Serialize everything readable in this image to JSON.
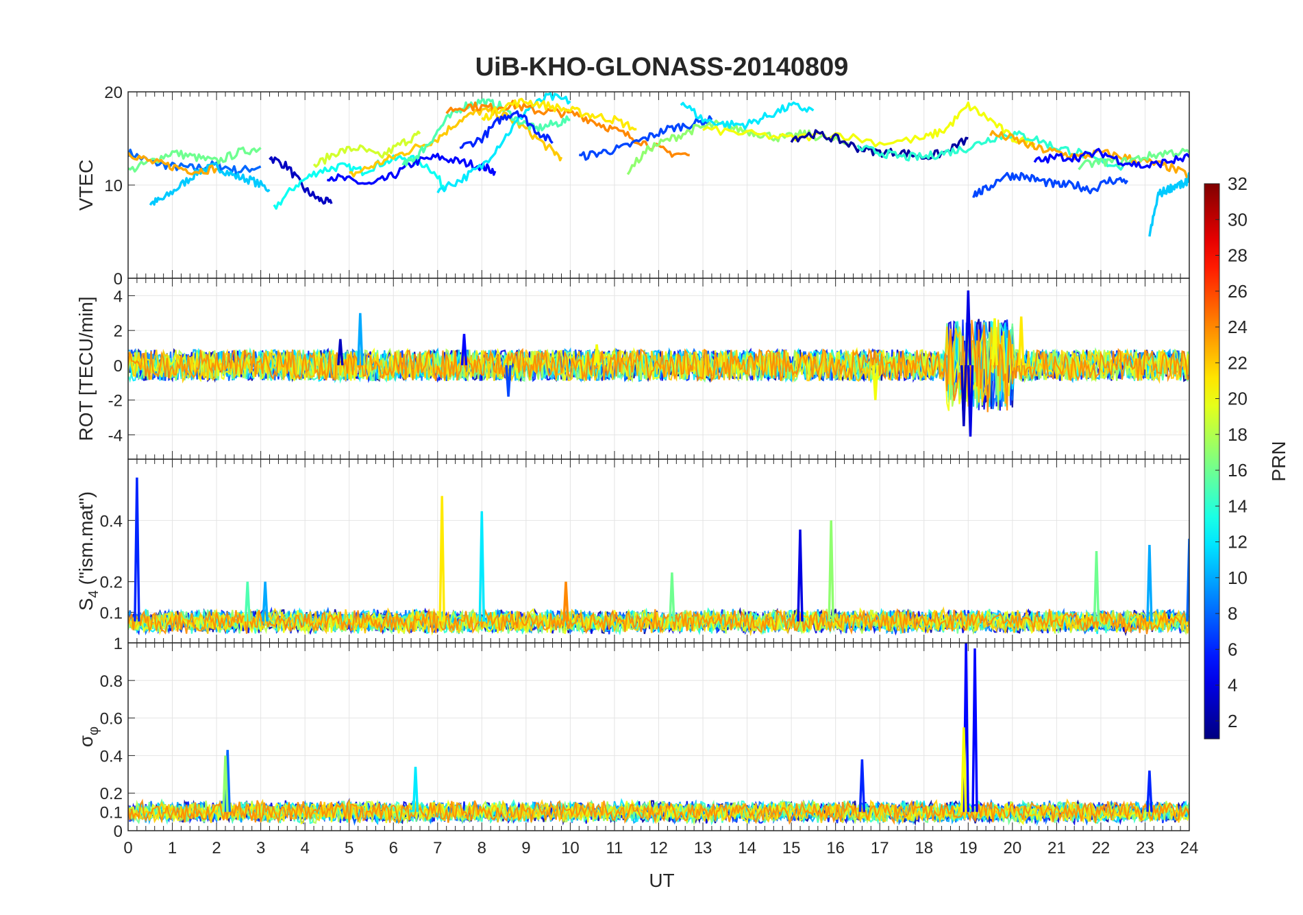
{
  "chart_data": {
    "type": "line",
    "title": "UiB-KHO-GLONASS-20140809",
    "xlabel": "UT",
    "xlim": [
      0,
      24
    ],
    "x_ticks": [
      "0",
      "1",
      "2",
      "3",
      "4",
      "5",
      "6",
      "7",
      "8",
      "9",
      "10",
      "11",
      "12",
      "13",
      "14",
      "15",
      "16",
      "17",
      "18",
      "19",
      "20",
      "21",
      "22",
      "23",
      "24"
    ],
    "grid": true,
    "panels": [
      {
        "ylabel": "VTEC",
        "ylim": [
          0,
          20
        ],
        "y_ticks": [
          "0",
          "10",
          "20"
        ],
        "tracks": [
          {
            "prn": 8,
            "x": [
              0,
              0.5,
              1,
              1.5,
              2,
              2.5,
              3
            ],
            "y": [
              13.5,
              12.5,
              12,
              11.8,
              12.2,
              11.5,
              12
            ]
          },
          {
            "prn": 11,
            "x": [
              0.5,
              0.8,
              1.2,
              1.6,
              2,
              2.4,
              2.8,
              3.2
            ],
            "y": [
              8,
              8.5,
              10,
              11.5,
              12,
              11,
              10.5,
              9.5
            ]
          },
          {
            "prn": 3,
            "x": [
              3.2,
              3.6,
              4,
              4.3,
              4.6
            ],
            "y": [
              13,
              12,
              9.5,
              8.5,
              8
            ]
          },
          {
            "prn": 13,
            "x": [
              3.3,
              3.8,
              4.3,
              4.8,
              5.3,
              5.8,
              6.3,
              6.8,
              7.2
            ],
            "y": [
              7.5,
              10,
              11.5,
              12,
              11.5,
              12.5,
              13,
              12,
              9.5
            ]
          },
          {
            "prn": 5,
            "x": [
              4.5,
              5,
              5.5,
              6,
              6.5,
              7,
              7.5,
              8,
              8.3
            ],
            "y": [
              11,
              10.5,
              10,
              11,
              12.5,
              13,
              12.5,
              12,
              11.5
            ]
          },
          {
            "prn": 16,
            "x": [
              0,
              0.5,
              1,
              1.5,
              2,
              2.5,
              3
            ],
            "y": [
              11.5,
              12.5,
              13.5,
              13,
              12.5,
              13.5,
              14
            ]
          },
          {
            "prn": 23,
            "x": [
              0,
              0.5,
              1,
              1.5,
              2
            ],
            "y": [
              13.5,
              12.5,
              12,
              11.5,
              11.8
            ]
          },
          {
            "prn": 19,
            "x": [
              4.2,
              4.7,
              5.2,
              5.7,
              6.2,
              6.6
            ],
            "y": [
              12,
              13.5,
              14,
              13,
              14.5,
              15.5
            ]
          },
          {
            "prn": 22,
            "x": [
              5,
              5.5,
              6,
              6.5,
              7,
              7.5,
              8,
              8.5,
              9,
              9.5,
              9.8
            ],
            "y": [
              11,
              12,
              13,
              14,
              15,
              17,
              18,
              17.5,
              16,
              14,
              13
            ]
          },
          {
            "prn": 15,
            "x": [
              6.2,
              6.5,
              6.8,
              7.2,
              7.6,
              8,
              8.4,
              8.8,
              9.2,
              9.6,
              10
            ],
            "y": [
              12,
              13,
              14.5,
              17,
              18.5,
              19,
              18.5,
              17,
              16,
              16.5,
              17
            ]
          },
          {
            "prn": 12,
            "x": [
              7,
              7.5,
              8,
              8.5,
              9,
              9.5,
              10
            ],
            "y": [
              9.5,
              10.5,
              12,
              15,
              18,
              19.5,
              19
            ]
          },
          {
            "prn": 6,
            "x": [
              7.5,
              8,
              8.4,
              8.8,
              9.2,
              9.6
            ],
            "y": [
              14,
              15,
              17,
              18,
              16,
              14.5
            ]
          },
          {
            "prn": 24,
            "x": [
              7.2,
              7.7,
              8.2,
              8.7,
              9.2,
              9.7,
              10.2,
              10.7,
              11.2,
              11.7,
              12.2,
              12.7
            ],
            "y": [
              18,
              18.5,
              18.3,
              18.6,
              18,
              17.8,
              17.5,
              16.5,
              15.5,
              14.5,
              13.5,
              13.2
            ]
          },
          {
            "prn": 21,
            "x": [
              8,
              8.5,
              9,
              9.5,
              10,
              10.5,
              11,
              11.5
            ],
            "y": [
              17,
              18.5,
              19,
              18.5,
              18,
              17.5,
              17,
              16
            ]
          },
          {
            "prn": 7,
            "x": [
              10.2,
              10.7,
              11.2,
              11.7,
              12.2,
              12.7,
              13.2
            ],
            "y": [
              13,
              13.5,
              14,
              15,
              16,
              16.5,
              17
            ]
          },
          {
            "prn": 17,
            "x": [
              11.3,
              11.8,
              12.3,
              12.8,
              13.3,
              13.8,
              14.3,
              14.8,
              15.3,
              15.8,
              16.3
            ],
            "y": [
              11.5,
              14,
              15,
              16,
              16.5,
              16,
              15.5,
              15,
              15.5,
              15,
              14.5
            ]
          },
          {
            "prn": 12,
            "x": [
              12.5,
              13,
              13.5,
              14,
              14.5,
              15,
              15.5
            ],
            "y": [
              19,
              17,
              16.5,
              16.5,
              17.5,
              18.5,
              18
            ]
          },
          {
            "prn": 20,
            "x": [
              13,
              14,
              15,
              16,
              17,
              18,
              18.5,
              19,
              19.5,
              20,
              20.5
            ],
            "y": [
              16,
              15.5,
              15,
              15.5,
              14.5,
              15,
              16,
              18.5,
              17,
              15,
              14.5
            ]
          },
          {
            "prn": 2,
            "x": [
              15,
              15.5,
              16,
              16.5,
              17,
              17.5,
              18,
              18.5,
              19
            ],
            "y": [
              15,
              15.5,
              15,
              14,
              13.5,
              13.5,
              13,
              13.5,
              15
            ]
          },
          {
            "prn": 14,
            "x": [
              16.5,
              17,
              17.5,
              18,
              18.5,
              19,
              19.5,
              20,
              20.5,
              21,
              21.5,
              22,
              22.5
            ],
            "y": [
              14,
              13.5,
              13,
              13,
              13.5,
              14,
              15,
              15.5,
              15,
              14,
              13.5,
              12.5,
              12
            ]
          },
          {
            "prn": 7,
            "x": [
              19.1,
              19.4,
              19.8,
              20.2,
              20.6,
              21,
              21.4,
              21.8,
              22.2,
              22.6
            ],
            "y": [
              9,
              9.5,
              11,
              11,
              10.5,
              10,
              10,
              9.5,
              10.5,
              10.5
            ]
          },
          {
            "prn": 23,
            "x": [
              19.5,
              20,
              20.5,
              21,
              21.5,
              22,
              22.5,
              23,
              23.5,
              24
            ],
            "y": [
              15.5,
              15,
              14,
              13.5,
              13,
              13.5,
              13,
              12.5,
              12,
              11
            ]
          },
          {
            "prn": 11,
            "x": [
              23.1,
              23.3,
              23.5,
              23.7,
              23.9,
              24
            ],
            "y": [
              4.5,
              9,
              9.5,
              10,
              10,
              11
            ]
          },
          {
            "prn": 16,
            "x": [
              21.5,
              22,
              22.5,
              23,
              23.5,
              24
            ],
            "y": [
              12,
              12.5,
              12.5,
              13,
              13.5,
              13.5
            ]
          },
          {
            "prn": 5,
            "x": [
              20.5,
              21,
              21.5,
              22,
              22.5,
              23,
              23.5,
              24
            ],
            "y": [
              12.5,
              13,
              13,
              13.5,
              12.5,
              12,
              12.5,
              13
            ]
          }
        ]
      },
      {
        "ylabel": "ROT [TECU/min]",
        "ylim": [
          -5.4,
          5
        ],
        "y_ticks": [
          "-4",
          "-2",
          "0",
          "2",
          "4"
        ],
        "spikes": [
          {
            "prn": 10,
            "x": 5.25,
            "y": 3
          },
          {
            "prn": 3,
            "x": 4.8,
            "y": 1.5
          },
          {
            "prn": 5,
            "x": 7.6,
            "y": 1.8
          },
          {
            "prn": 20,
            "x": 10.6,
            "y": 1.2
          },
          {
            "prn": 4,
            "x": 19,
            "y": 4.3
          },
          {
            "prn": 4,
            "x": 19.05,
            "y": -4.1
          },
          {
            "prn": 20,
            "x": 19.6,
            "y": 2.7
          },
          {
            "prn": 21,
            "x": 20.2,
            "y": 2.8
          },
          {
            "prn": 20,
            "x": 16.9,
            "y": -2.0
          },
          {
            "prn": 7,
            "x": 8.6,
            "y": -1.8
          },
          {
            "prn": 3,
            "x": 18.9,
            "y": -3.5
          }
        ]
      },
      {
        "ylabel": "S_4 (\"ism.mat\")",
        "ylim": [
          0,
          0.6
        ],
        "y_ticks": [
          "0.1",
          "0.2",
          "0.4"
        ],
        "spikes": [
          {
            "prn": 6,
            "x": 0.2,
            "y": 0.54
          },
          {
            "prn": 21,
            "x": 7.1,
            "y": 0.48
          },
          {
            "prn": 12,
            "x": 8.0,
            "y": 0.43
          },
          {
            "prn": 4,
            "x": 15.2,
            "y": 0.37
          },
          {
            "prn": 17,
            "x": 15.9,
            "y": 0.4
          },
          {
            "prn": 16,
            "x": 21.9,
            "y": 0.3
          },
          {
            "prn": 10,
            "x": 23.1,
            "y": 0.32
          },
          {
            "prn": 8,
            "x": 24,
            "y": 0.34
          },
          {
            "prn": 24,
            "x": 9.9,
            "y": 0.2
          },
          {
            "prn": 16,
            "x": 12.3,
            "y": 0.23
          },
          {
            "prn": 15,
            "x": 2.7,
            "y": 0.2
          },
          {
            "prn": 10,
            "x": 3.1,
            "y": 0.2
          }
        ]
      },
      {
        "ylabel": "σ_φ",
        "ylim": [
          0,
          1.0
        ],
        "y_ticks": [
          "0",
          "0.1",
          "0.2",
          "0.4",
          "0.6",
          "0.8",
          "1"
        ],
        "spikes": [
          {
            "prn": 5,
            "x": 18.95,
            "y": 1.0
          },
          {
            "prn": 5,
            "x": 19.15,
            "y": 0.97
          },
          {
            "prn": 20,
            "x": 18.9,
            "y": 0.55
          },
          {
            "prn": 8,
            "x": 2.25,
            "y": 0.43
          },
          {
            "prn": 17,
            "x": 2.2,
            "y": 0.4
          },
          {
            "prn": 6,
            "x": 16.6,
            "y": 0.38
          },
          {
            "prn": 6,
            "x": 23.1,
            "y": 0.32
          },
          {
            "prn": 12,
            "x": 6.5,
            "y": 0.34
          }
        ]
      }
    ],
    "colorbar": {
      "label": "PRN",
      "range": [
        1,
        32
      ],
      "ticks": [
        "2",
        "4",
        "6",
        "8",
        "10",
        "12",
        "14",
        "16",
        "18",
        "20",
        "22",
        "24",
        "26",
        "28",
        "30",
        "32"
      ],
      "colormap": "jet"
    }
  }
}
